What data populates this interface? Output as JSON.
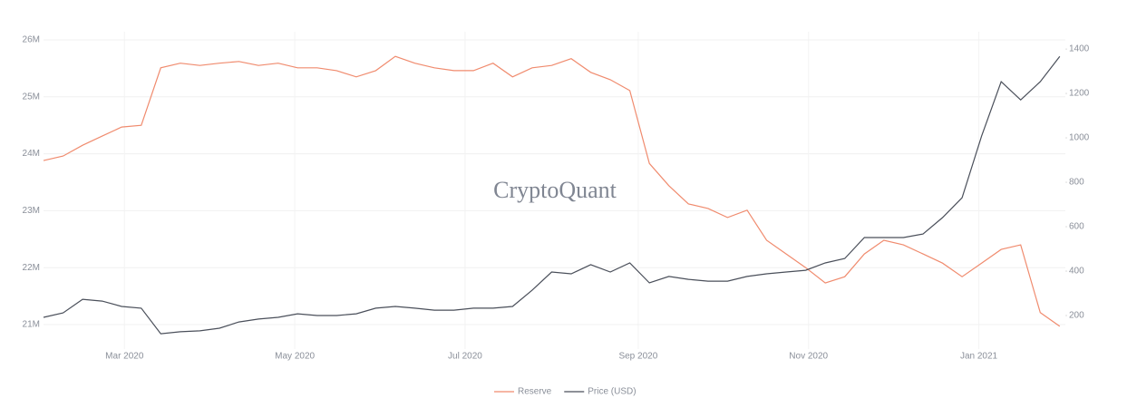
{
  "chart_data": {
    "type": "line",
    "watermark": "CryptoQuant",
    "x": [
      "2020-02-01",
      "2020-02-08",
      "2020-02-15",
      "2020-02-22",
      "2020-02-29",
      "2020-03-07",
      "2020-03-14",
      "2020-03-21",
      "2020-03-28",
      "2020-04-04",
      "2020-04-11",
      "2020-04-18",
      "2020-04-25",
      "2020-05-02",
      "2020-05-09",
      "2020-05-16",
      "2020-05-23",
      "2020-05-30",
      "2020-06-06",
      "2020-06-13",
      "2020-06-20",
      "2020-06-27",
      "2020-07-04",
      "2020-07-11",
      "2020-07-18",
      "2020-07-25",
      "2020-08-01",
      "2020-08-08",
      "2020-08-15",
      "2020-08-22",
      "2020-08-29",
      "2020-09-05",
      "2020-09-12",
      "2020-09-19",
      "2020-09-26",
      "2020-10-03",
      "2020-10-10",
      "2020-10-17",
      "2020-10-24",
      "2020-10-31",
      "2020-11-07",
      "2020-11-14",
      "2020-11-21",
      "2020-11-28",
      "2020-12-05",
      "2020-12-12",
      "2020-12-19",
      "2020-12-26",
      "2021-01-02",
      "2021-01-09",
      "2021-01-16",
      "2021-01-23",
      "2021-01-30"
    ],
    "xlim": [
      "2020-02-01",
      "2021-02-01"
    ],
    "xticks": [
      {
        "value": "2020-03-01",
        "label": "Mar 2020"
      },
      {
        "value": "2020-05-01",
        "label": "May 2020"
      },
      {
        "value": "2020-07-01",
        "label": "Jul 2020"
      },
      {
        "value": "2020-09-01",
        "label": "Sep 2020"
      },
      {
        "value": "2020-11-01",
        "label": "Nov 2020"
      },
      {
        "value": "2021-01-01",
        "label": "Jan 2021"
      }
    ],
    "ylim": [
      20570000,
      26143000
    ],
    "yticks": [
      {
        "value": 21000000,
        "label": "21M"
      },
      {
        "value": 22000000,
        "label": "22M"
      },
      {
        "value": 23000000,
        "label": "23M"
      },
      {
        "value": 24000000,
        "label": "24M"
      },
      {
        "value": 25000000,
        "label": "25M"
      },
      {
        "value": 26000000,
        "label": "26M"
      }
    ],
    "y2lim": [
      49,
      1478
    ],
    "y2ticks": [
      200,
      400,
      600,
      800,
      1000,
      1200,
      1400
    ],
    "grid": true,
    "legend": "bottom",
    "series": [
      {
        "name": "Reserve",
        "color": "#f08b6e",
        "values": [
          23880000,
          23960000,
          24150000,
          24310000,
          24470000,
          24500000,
          25510000,
          25590000,
          25550000,
          25590000,
          25620000,
          25550000,
          25590000,
          25510000,
          25510000,
          25460000,
          25350000,
          25460000,
          25710000,
          25590000,
          25510000,
          25460000,
          25460000,
          25590000,
          25350000,
          25510000,
          25550000,
          25670000,
          25430000,
          25300000,
          25110000,
          23830000,
          23440000,
          23120000,
          23040000,
          22880000,
          23010000,
          22480000,
          22240000,
          22000000,
          21730000,
          21840000,
          22240000,
          22480000,
          22400000,
          22240000,
          22080000,
          21840000,
          22080000,
          22320000,
          22400000,
          21210000,
          20970000
        ]
      },
      {
        "name": "Price (USD)",
        "color": "#4a4f5a",
        "axis": "y2",
        "values": [
          192,
          212,
          273,
          265,
          241,
          233,
          118,
          127,
          131,
          143,
          171,
          184,
          192,
          208,
          200,
          200,
          208,
          233,
          241,
          233,
          224,
          224,
          233,
          233,
          241,
          314,
          396,
          388,
          429,
          396,
          437,
          347,
          376,
          363,
          355,
          355,
          376,
          388,
          396,
          404,
          437,
          457,
          551,
          551,
          551,
          567,
          641,
          731,
          1008,
          1253,
          1171,
          1253,
          1367
        ]
      }
    ]
  }
}
